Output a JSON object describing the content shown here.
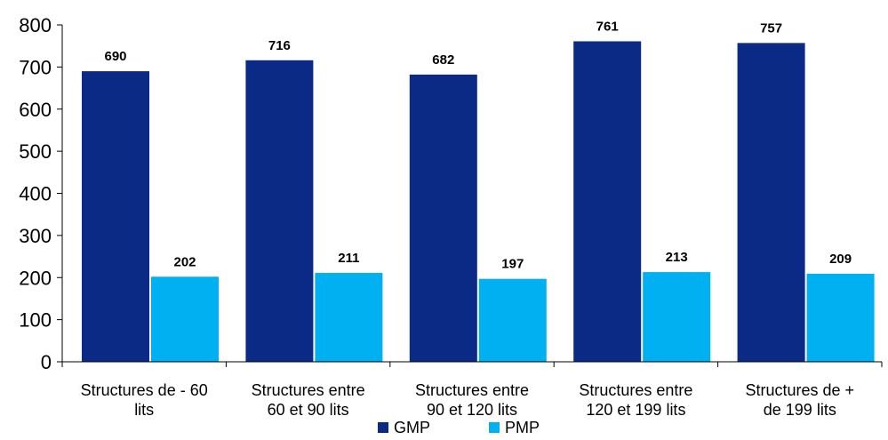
{
  "chart_data": {
    "type": "bar",
    "categories": [
      [
        "Structures de - 60",
        "lits"
      ],
      [
        "Structures entre",
        "60 et 90 lits"
      ],
      [
        "Structures entre",
        "90 et 120 lits"
      ],
      [
        "Structures entre",
        "120 et 199 lits"
      ],
      [
        "Structures de +",
        "de 199 lits"
      ]
    ],
    "series": [
      {
        "name": "GMP",
        "values": [
          690,
          716,
          682,
          761,
          757
        ],
        "color": "#0a2a86"
      },
      {
        "name": "PMP",
        "values": [
          202,
          211,
          197,
          213,
          209
        ],
        "color": "#00b0f0"
      }
    ],
    "ylim": [
      0,
      800
    ],
    "yticks": [
      0,
      100,
      200,
      300,
      400,
      500,
      600,
      700,
      800
    ],
    "grid": false,
    "legend": "bottom",
    "data_labels": true
  }
}
